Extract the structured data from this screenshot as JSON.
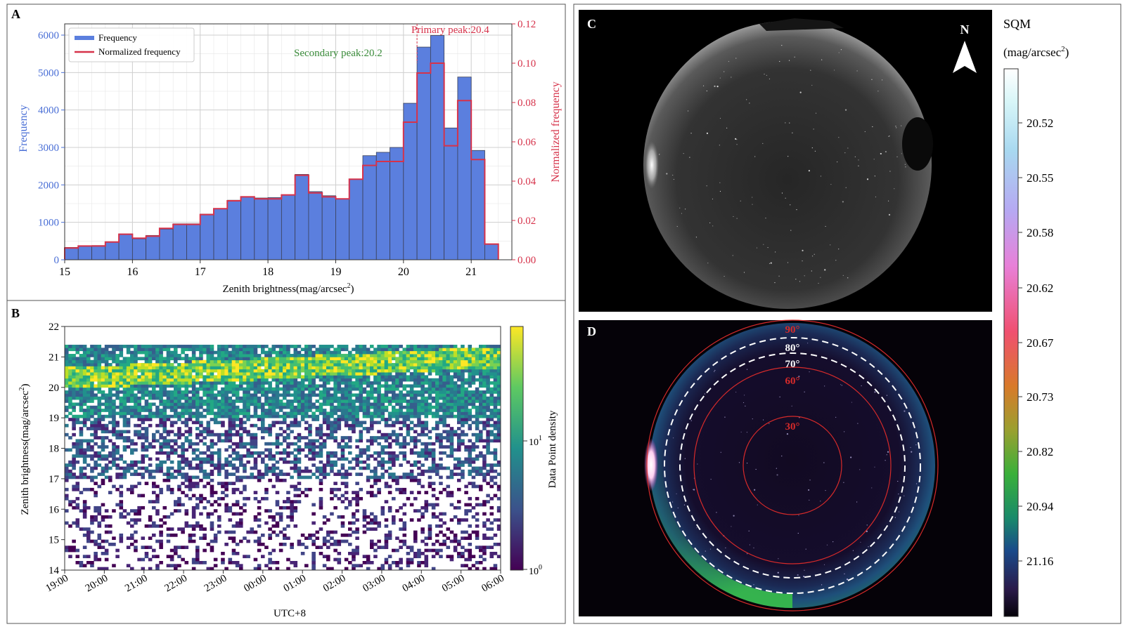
{
  "panels": {
    "a": "A",
    "b": "B",
    "c": "C",
    "d": "D"
  },
  "chart_data": [
    {
      "panel": "A",
      "type": "bar",
      "xlabel": "Zenith brightness(mag/arcsec",
      "xlabel_sup": "2",
      "xlabel_tail": ")",
      "ylabel": "Frequency",
      "y2label": "Normalized frequency",
      "xlim": [
        15,
        21.6
      ],
      "ylim": [
        0,
        6300
      ],
      "y2lim": [
        0,
        0.12
      ],
      "xticks": [
        "15",
        "16",
        "17",
        "18",
        "19",
        "20",
        "21"
      ],
      "yticks": [
        "0",
        "1000",
        "2000",
        "3000",
        "4000",
        "5000",
        "6000"
      ],
      "y2ticks": [
        "0.00",
        "0.02",
        "0.04",
        "0.06",
        "0.08",
        "0.10",
        "0.12"
      ],
      "grid": true,
      "legend_position": "top-left",
      "bin_start": 15.0,
      "bin_width": 0.2,
      "series": [
        {
          "name": "Frequency",
          "color": "#5b7fde",
          "values": [
            330,
            360,
            380,
            480,
            690,
            560,
            650,
            820,
            960,
            960,
            1220,
            1360,
            1590,
            1690,
            1650,
            1660,
            1730,
            2280,
            1820,
            1710,
            1620,
            2150,
            2780,
            2870,
            3000,
            4180,
            5680,
            5990,
            3520,
            4880,
            2920,
            410
          ]
        },
        {
          "name": "Normalized frequency",
          "color": "#d6324a",
          "values": [
            0.006,
            0.007,
            0.007,
            0.009,
            0.013,
            0.011,
            0.012,
            0.016,
            0.018,
            0.018,
            0.023,
            0.026,
            0.03,
            0.032,
            0.031,
            0.031,
            0.033,
            0.043,
            0.034,
            0.032,
            0.031,
            0.041,
            0.048,
            0.05,
            0.05,
            0.07,
            0.095,
            0.1,
            0.058,
            0.081,
            0.051,
            0.008
          ]
        }
      ],
      "annotations": {
        "primary": {
          "label": "Primary peak:20.4",
          "x": 20.2,
          "color": "#d6324a"
        },
        "secondary": {
          "label": "Secondary peak:20.2",
          "color": "#3a8b3a"
        }
      }
    },
    {
      "panel": "B",
      "type": "heatmap",
      "xlabel": "UTC+8",
      "ylabel": "Zenith brightness(mag/arcsec",
      "ylabel_sup": "2",
      "ylabel_tail": ")",
      "xticks": [
        "19:00",
        "20:00",
        "21:00",
        "22:00",
        "23:00",
        "00:00",
        "01:00",
        "02:00",
        "03:00",
        "04:00",
        "05:00",
        "06:00"
      ],
      "yticks": [
        "14",
        "15",
        "16",
        "17",
        "18",
        "19",
        "20",
        "21",
        "22"
      ],
      "ylim": [
        14,
        22
      ],
      "colormap": "viridis",
      "colorbar": {
        "label": "Data Point density",
        "scale": "log",
        "ticks": [
          {
            "base": "10",
            "exp": "0",
            "value": 1
          },
          {
            "base": "10",
            "exp": "1",
            "value": 10
          }
        ]
      }
    },
    {
      "panel": "D",
      "type": "polar-image",
      "circles": [
        {
          "label": "90°",
          "color": "#d62a2a",
          "style": "solid"
        },
        {
          "label": "80°",
          "color": "#ffffff",
          "style": "dashed"
        },
        {
          "label": "70°",
          "color": "#ffffff",
          "style": "dashed"
        },
        {
          "label": "60°",
          "color": "#d62a2a",
          "style": "solid"
        },
        {
          "label": "30°",
          "color": "#d62a2a",
          "style": "solid"
        }
      ],
      "colorbar": {
        "title": "SQM",
        "unit": "(mag/arcsec",
        "unit_sup": "2",
        "unit_tail": ")",
        "ticks": [
          "20.52",
          "20.55",
          "20.58",
          "20.62",
          "20.67",
          "20.73",
          "20.82",
          "20.94",
          "21.16"
        ]
      }
    }
  ],
  "compass": {
    "label": "N",
    "icon": "north-arrow-icon"
  },
  "colors": {
    "bar": "#5b7fde",
    "step": "#d6324a",
    "left_axis": "#4a6fd6",
    "right_axis": "#d6324a",
    "secondary_text": "#3a8b3a"
  }
}
